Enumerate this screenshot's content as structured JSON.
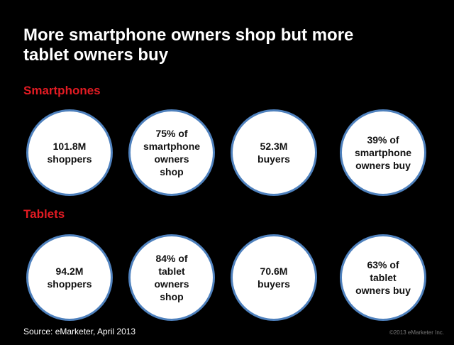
{
  "title": [
    "More smartphone owners shop but more",
    "tablet owners buy"
  ],
  "sections": [
    {
      "heading": "Smartphones",
      "circles": [
        {
          "lines": [
            "101.8M",
            "shoppers"
          ]
        },
        {
          "lines": [
            "75% of",
            "smartphone",
            "owners",
            "shop"
          ]
        },
        {
          "lines": [
            "52.3M",
            "buyers"
          ]
        },
        {
          "lines": [
            "39% of",
            "smartphone",
            "owners buy"
          ]
        }
      ]
    },
    {
      "heading": "Tablets",
      "circles": [
        {
          "lines": [
            "94.2M",
            "shoppers"
          ]
        },
        {
          "lines": [
            "84% of",
            "tablet",
            "owners",
            "shop"
          ]
        },
        {
          "lines": [
            "70.6M",
            "buyers"
          ]
        },
        {
          "lines": [
            "63% of",
            "tablet",
            "owners buy"
          ]
        }
      ]
    }
  ],
  "source": "Source: eMarketer, April 2013",
  "copyright": "©2013 eMarketer Inc."
}
